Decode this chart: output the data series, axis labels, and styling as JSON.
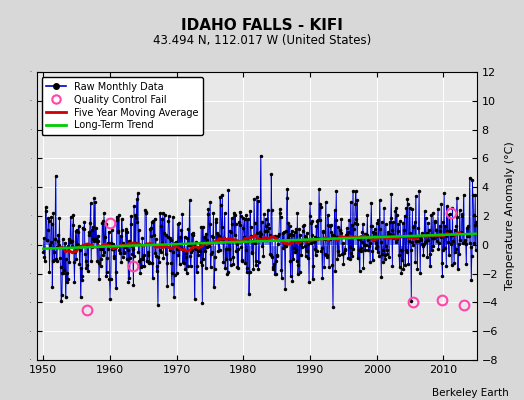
{
  "title": "IDAHO FALLS - KIFI",
  "subtitle": "43.494 N, 112.017 W (United States)",
  "ylabel": "Temperature Anomaly (°C)",
  "credit": "Berkeley Earth",
  "xlim": [
    1949,
    2015
  ],
  "ylim": [
    -8,
    12
  ],
  "yticks": [
    -8,
    -6,
    -4,
    -2,
    0,
    2,
    4,
    6,
    8,
    10,
    12
  ],
  "xticks": [
    1950,
    1960,
    1970,
    1980,
    1990,
    2000,
    2010
  ],
  "bg_color": "#d8d8d8",
  "plot_bg_color": "#e8e8e8",
  "seed": 12345,
  "years_start": 1950,
  "years_end": 2014,
  "stem_color": "#4466ff",
  "line_color": "#0000cc",
  "dot_color": "#000000",
  "ma_color": "#cc0000",
  "trend_color": "#00cc00",
  "qc_color": "#ff44aa",
  "grid_color": "#ffffff"
}
